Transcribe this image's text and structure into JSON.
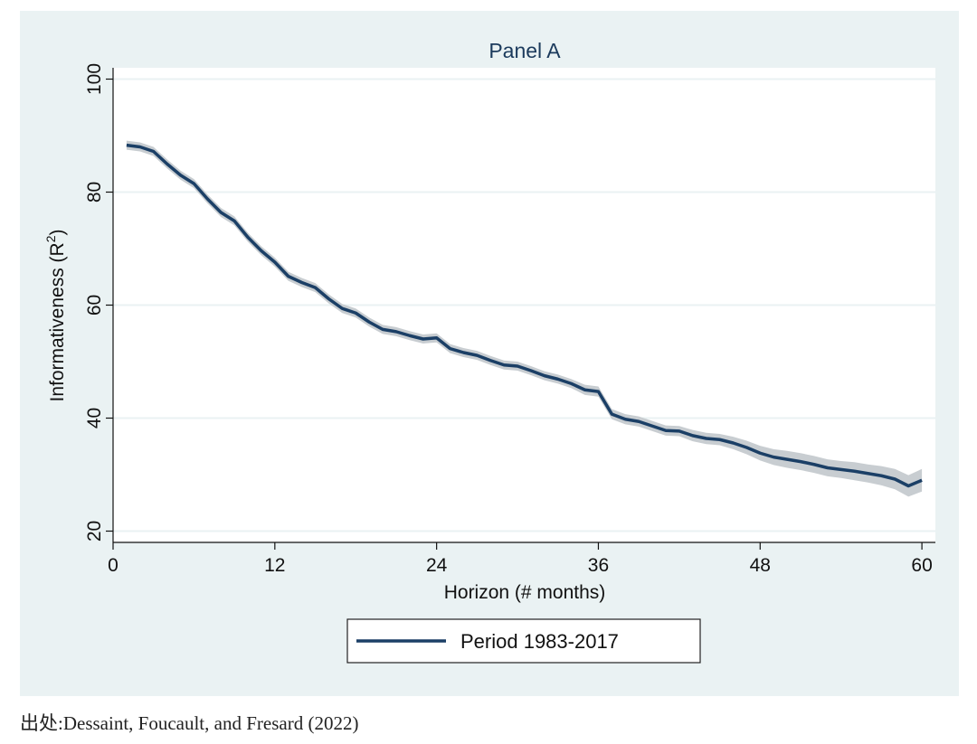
{
  "chart_data": {
    "type": "line",
    "title": "Panel A",
    "xlabel": "Horizon (# months)",
    "ylabel": "Informativeness (R",
    "ylabel_superscript": "2",
    "ylabel_close": ")",
    "xlim": [
      0,
      61
    ],
    "ylim": [
      18,
      102
    ],
    "xticks": [
      0,
      12,
      24,
      36,
      48,
      60
    ],
    "yticks": [
      20,
      40,
      60,
      80,
      100
    ],
    "grid": true,
    "legend_position": "bottom",
    "series": [
      {
        "name": "Period 1983-2017",
        "color": "#1b3f66",
        "band_color": "#c8cdd1",
        "x": [
          1,
          2,
          3,
          4,
          5,
          6,
          7,
          8,
          9,
          10,
          11,
          12,
          13,
          14,
          15,
          16,
          17,
          18,
          19,
          20,
          21,
          22,
          23,
          24,
          25,
          26,
          27,
          28,
          29,
          30,
          31,
          32,
          33,
          34,
          35,
          36,
          37,
          38,
          39,
          40,
          41,
          42,
          43,
          44,
          45,
          46,
          47,
          48,
          49,
          50,
          51,
          52,
          53,
          54,
          55,
          56,
          57,
          58,
          59,
          60
        ],
        "y": [
          88.3,
          88.0,
          87.2,
          85.0,
          83.0,
          81.5,
          78.8,
          76.4,
          74.9,
          72.0,
          69.6,
          67.6,
          65.1,
          64.0,
          63.1,
          61.1,
          59.4,
          58.6,
          57.0,
          55.7,
          55.3,
          54.6,
          54.0,
          54.2,
          52.3,
          51.6,
          51.1,
          50.2,
          49.4,
          49.2,
          48.4,
          47.5,
          46.9,
          46.1,
          45.0,
          44.7,
          40.7,
          39.8,
          39.4,
          38.6,
          37.8,
          37.7,
          36.9,
          36.4,
          36.2,
          35.6,
          34.8,
          33.8,
          33.1,
          32.7,
          32.3,
          31.8,
          31.2,
          30.9,
          30.6,
          30.2,
          29.8,
          29.2,
          28.0,
          29.0
        ],
        "band_halfwidth": [
          0.8,
          0.8,
          0.8,
          0.8,
          0.8,
          0.8,
          0.8,
          0.8,
          0.8,
          0.8,
          0.8,
          0.8,
          0.8,
          0.8,
          0.8,
          0.8,
          0.8,
          0.8,
          0.8,
          0.8,
          0.8,
          0.8,
          0.8,
          0.8,
          0.8,
          0.8,
          0.8,
          0.8,
          0.8,
          0.8,
          0.8,
          0.8,
          0.8,
          0.8,
          0.9,
          0.9,
          0.9,
          0.9,
          0.9,
          0.9,
          0.9,
          0.9,
          1.0,
          1.0,
          1.0,
          1.1,
          1.2,
          1.3,
          1.4,
          1.5,
          1.5,
          1.5,
          1.5,
          1.5,
          1.6,
          1.6,
          1.7,
          1.8,
          1.9,
          2.0
        ]
      }
    ]
  },
  "source_note": "出处:Dessaint, Foucault, and Fresard (2022)"
}
